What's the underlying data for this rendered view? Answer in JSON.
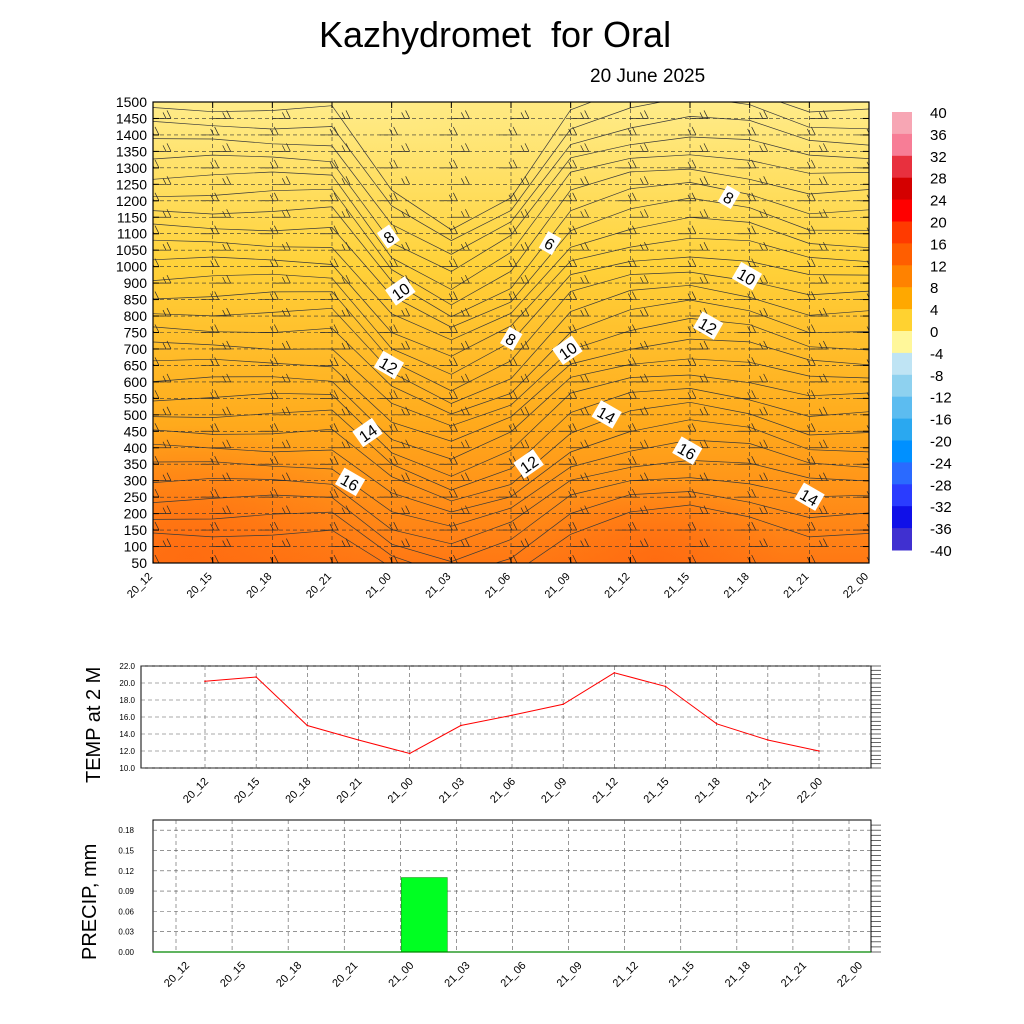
{
  "header": {
    "title": "Kazhydromet  for Oral",
    "date": "20 June 2025"
  },
  "chart_data": [
    {
      "type": "heatmap",
      "name": "vertical-profile",
      "x_ticks": [
        "20_12",
        "20_15",
        "20_18",
        "20_21",
        "21_00",
        "21_03",
        "21_06",
        "21_09",
        "21_12",
        "21_15",
        "21_18",
        "21_21",
        "22_00"
      ],
      "y_ticks": [
        50,
        100,
        150,
        200,
        250,
        300,
        350,
        400,
        450,
        500,
        550,
        600,
        650,
        700,
        750,
        800,
        850,
        900,
        1000,
        1050,
        1100,
        1150,
        1200,
        1250,
        1300,
        1350,
        1400,
        1450,
        1500
      ],
      "colorbar_labels": [
        "40",
        "36",
        "32",
        "28",
        "24",
        "20",
        "16",
        "12",
        "8",
        "4",
        "0",
        "-4",
        "-8",
        "-12",
        "-16",
        "-20",
        "-24",
        "-28",
        "-32",
        "-36",
        "-40"
      ],
      "colorbar_range": [
        -40,
        40
      ],
      "contour_labels": [
        {
          "text": "8",
          "x": 3.95,
          "y": 19.8
        },
        {
          "text": "6",
          "x": 6.65,
          "y": 19.4
        },
        {
          "text": "8",
          "x": 9.65,
          "y": 22.2
        },
        {
          "text": "10",
          "x": 4.15,
          "y": 16.5
        },
        {
          "text": "10",
          "x": 9.95,
          "y": 17.4
        },
        {
          "text": "8",
          "x": 6.0,
          "y": 13.6
        },
        {
          "text": "10",
          "x": 6.95,
          "y": 12.9
        },
        {
          "text": "12",
          "x": 9.3,
          "y": 14.4
        },
        {
          "text": "12",
          "x": 3.95,
          "y": 12.0
        },
        {
          "text": "14",
          "x": 3.6,
          "y": 7.9
        },
        {
          "text": "14",
          "x": 7.6,
          "y": 9.0
        },
        {
          "text": "16",
          "x": 3.3,
          "y": 4.9
        },
        {
          "text": "12",
          "x": 6.3,
          "y": 6.0
        },
        {
          "text": "16",
          "x": 8.95,
          "y": 6.8
        },
        {
          "text": "14",
          "x": 11.0,
          "y": 4.0
        }
      ],
      "colors": {
        "cool": "#ffd23a",
        "mid": "#ffaf1c",
        "warm": "#ff7a14",
        "contour": "#404040",
        "bar": "#00ff22",
        "line": "#ff0000"
      }
    },
    {
      "type": "line",
      "name": "temp-2m",
      "ylabel": "TEMP at 2 M",
      "ylim": [
        10,
        22
      ],
      "y_ticks": [
        "22.0",
        "20.0",
        "18.0",
        "16.0",
        "14.0",
        "12.0",
        "10.0"
      ],
      "x": [
        "20_12",
        "20_15",
        "20_18",
        "20_21",
        "21_00",
        "21_03",
        "21_06",
        "21_09",
        "21_12",
        "21_15",
        "21_18",
        "21_21",
        "22_00"
      ],
      "values": [
        20.2,
        20.7,
        15.0,
        13.3,
        11.7,
        15.0,
        16.2,
        17.5,
        21.2,
        19.6,
        15.2,
        13.3,
        12.0
      ]
    },
    {
      "type": "bar",
      "name": "precip",
      "ylabel": "PRECIP, mm",
      "ylim": [
        0,
        0.195
      ],
      "y_ticks": [
        "0.18",
        "0.15",
        "0.12",
        "0.09",
        "0.06",
        "0.03",
        "0.00"
      ],
      "x": [
        "20_12",
        "20_15",
        "20_18",
        "20_21",
        "21_00",
        "21_03",
        "21_06",
        "21_09",
        "21_12",
        "21_15",
        "21_18",
        "21_21",
        "22_00"
      ],
      "values": [
        0,
        0,
        0,
        0,
        0.11,
        0,
        0,
        0,
        0,
        0,
        0,
        0,
        0
      ]
    }
  ]
}
